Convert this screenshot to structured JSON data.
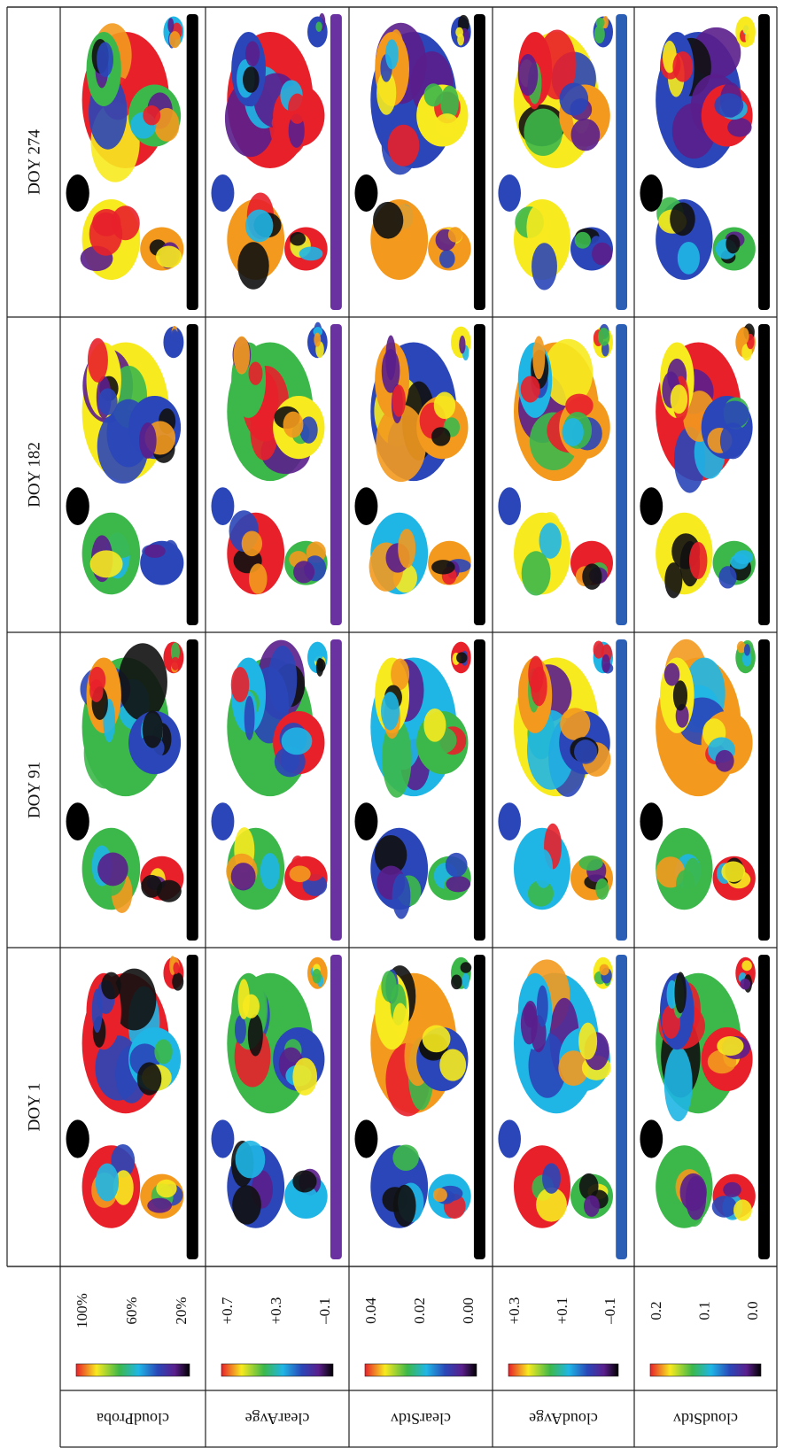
{
  "columns": [
    "DOY 1",
    "DOY 91",
    "DOY 182",
    "DOY 274"
  ],
  "rows": [
    {
      "label": "cloudProba",
      "ticks": [
        "100%",
        "60%",
        "20%"
      ]
    },
    {
      "label": "clearAvge",
      "ticks": [
        "+0.7",
        "+0.3",
        "–0.1"
      ]
    },
    {
      "label": "clearStdv",
      "ticks": [
        "0.04",
        "0.02",
        "0.00"
      ]
    },
    {
      "label": "cloudAvge",
      "ticks": [
        "+0.3",
        "+0.1",
        "–0.1"
      ]
    },
    {
      "label": "cloudStdv",
      "ticks": [
        "0.2",
        "0.1",
        "0.0"
      ]
    }
  ]
}
